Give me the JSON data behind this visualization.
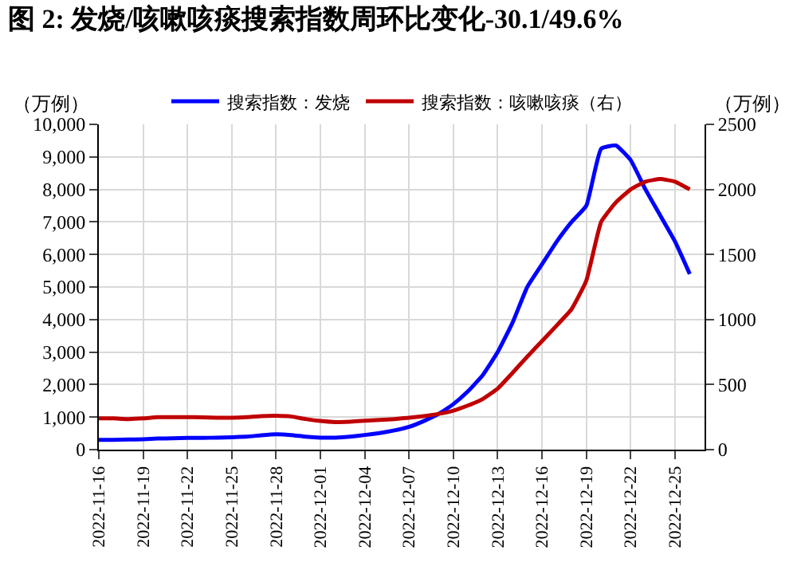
{
  "chart_data": {
    "type": "line",
    "title": "图 2: 发烧/咳嗽咳痰搜索指数周环比变化-30.1/49.6%",
    "ylabel": "（万例）",
    "y2label": "（万例）",
    "x": [
      "2022-11-16",
      "2022-11-17",
      "2022-11-18",
      "2022-11-19",
      "2022-11-20",
      "2022-11-21",
      "2022-11-22",
      "2022-11-23",
      "2022-11-24",
      "2022-11-25",
      "2022-11-26",
      "2022-11-27",
      "2022-11-28",
      "2022-11-29",
      "2022-11-30",
      "2022-12-01",
      "2022-12-02",
      "2022-12-03",
      "2022-12-04",
      "2022-12-05",
      "2022-12-06",
      "2022-12-07",
      "2022-12-08",
      "2022-12-09",
      "2022-12-10",
      "2022-12-11",
      "2022-12-12",
      "2022-12-13",
      "2022-12-14",
      "2022-12-15",
      "2022-12-16",
      "2022-12-17",
      "2022-12-18",
      "2022-12-19",
      "2022-12-20",
      "2022-12-21",
      "2022-12-22",
      "2022-12-23",
      "2022-12-24",
      "2022-12-25",
      "2022-12-26"
    ],
    "series": [
      {
        "name": "搜索指数：发烧",
        "color": "#0000ff",
        "values": [
          300,
          300,
          310,
          320,
          340,
          350,
          360,
          360,
          370,
          380,
          400,
          440,
          470,
          450,
          400,
          370,
          370,
          400,
          450,
          510,
          590,
          700,
          880,
          1100,
          1400,
          1800,
          2300,
          3000,
          3900,
          5000,
          5700,
          6400,
          7000,
          7500,
          9250,
          9350,
          8900,
          8000,
          7200,
          6400,
          5400
        ]
      },
      {
        "name": "搜索指数：咳嗽咳痰（右）",
        "color": "#c00000",
        "axis": "y2",
        "values": [
          240,
          240,
          235,
          240,
          250,
          250,
          250,
          248,
          245,
          245,
          250,
          258,
          260,
          255,
          235,
          220,
          212,
          215,
          222,
          228,
          235,
          245,
          258,
          275,
          300,
          340,
          390,
          470,
          590,
          715,
          835,
          955,
          1080,
          1300,
          1750,
          1900,
          2000,
          2060,
          2080,
          2060,
          2000
        ]
      }
    ],
    "xlim": [
      "2022-11-16",
      "2022-12-27"
    ],
    "xticks": [
      "2022-11-16",
      "2022-11-19",
      "2022-11-22",
      "2022-11-25",
      "2022-11-28",
      "2022-12-01",
      "2022-12-04",
      "2022-12-07",
      "2022-12-10",
      "2022-12-13",
      "2022-12-16",
      "2022-12-19",
      "2022-12-22",
      "2022-12-25"
    ],
    "ylim": [
      0,
      10000
    ],
    "yticks": [
      0,
      {
        "value": 1000,
        "label": "1,000"
      },
      {
        "value": 2000,
        "label": "2,000"
      },
      {
        "value": 3000,
        "label": "3,000"
      },
      {
        "value": 4000,
        "label": "4,000"
      },
      {
        "value": 5000,
        "label": "5,000"
      },
      {
        "value": 6000,
        "label": "6,000"
      },
      {
        "value": 7000,
        "label": "7,000"
      },
      {
        "value": 8000,
        "label": "8,000"
      },
      {
        "value": 9000,
        "label": "9,000"
      },
      {
        "value": 10000,
        "label": "10,000"
      }
    ],
    "y2lim": [
      0,
      2500
    ],
    "y2ticks": [
      0,
      500,
      1000,
      1500,
      2000,
      2500
    ],
    "grid": true,
    "legend": "top",
    "marker": "none",
    "line_style": "solid"
  }
}
